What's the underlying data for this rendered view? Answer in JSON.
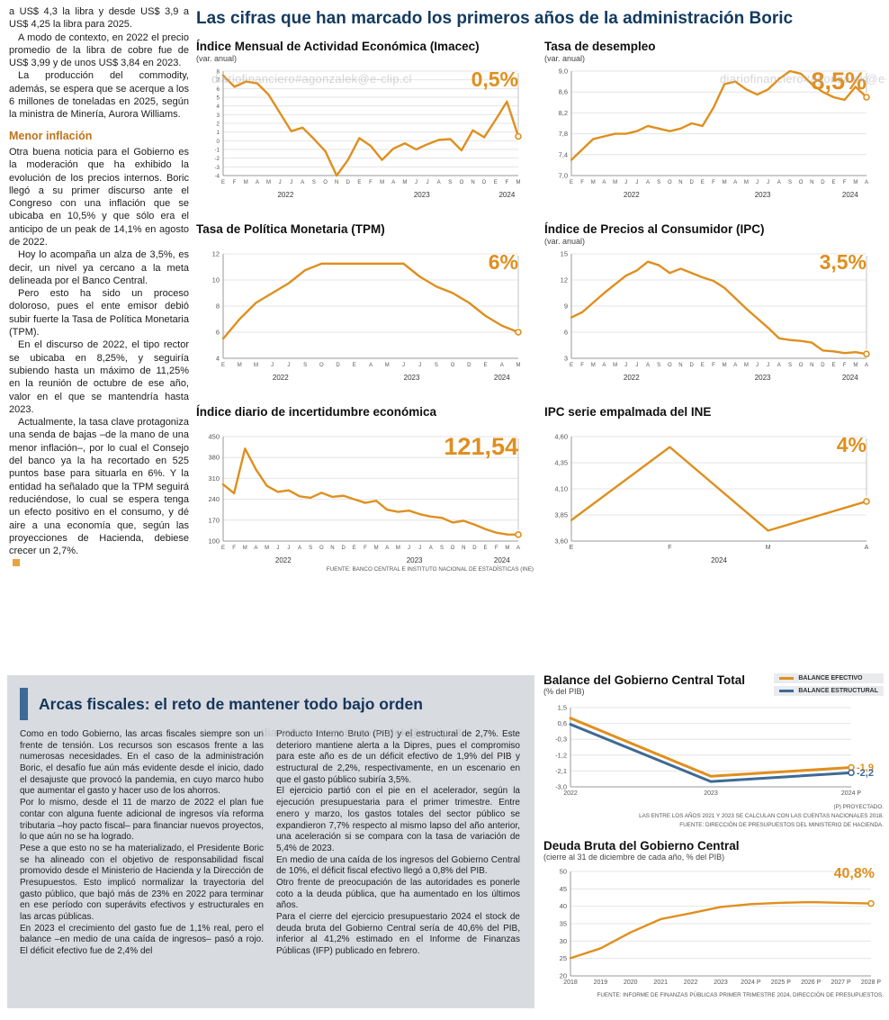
{
  "main_title": "Las cifras que han marcado los primeros años de la administración Boric",
  "watermark": "diariofinanciero#agonzalek@e-clip.cl",
  "colors": {
    "accent_orange": "#DF8F1E",
    "navy": "#143B60",
    "blue": "#3D6A96",
    "box_gray": "#D8DBE0"
  },
  "article_left": {
    "paragraphs": [
      "a US$ 4,3 la libra y desde US$ 3,9 a US$ 4,25 la libra para 2025.",
      "A modo de contexto, en 2022 el precio promedio de la libra de cobre fue de US$ 3,99 y de unos US$ 3,84 en 2023.",
      "La producción del commodity, además, se espera que se acerque a los 6 millones de toneladas en 2025, según la ministra de Minería, Aurora Williams."
    ],
    "heading": "Menor inflación",
    "paragraphs2": [
      "Otra buena noticia para el Gobierno es la moderación que ha exhibido la evolución de los precios internos. Boric llegó a su primer discurso ante el Congreso con una inflación que se ubicaba en 10,5% y que sólo era el anticipo de un peak de 14,1% en agosto de 2022.",
      "Hoy lo acompaña un alza de 3,5%, es decir, un nivel ya cercano a la meta delineada por el Banco Central.",
      "Pero esto ha sido un proceso doloroso, pues el ente emisor debió subir fuerte la Tasa de Política Monetaria (TPM).",
      "En el discurso de 2022, el tipo rector se ubicaba en 8,25%, y seguiría subiendo hasta un máximo de 11,25% en la reunión de octubre de ese año, valor en el que se mantendría hasta 2023.",
      "Actualmente, la tasa clave protagoniza una senda de bajas –de la mano de una menor inflación–, por lo cual el Consejo del banco ya la ha recortado en 525 puntos base para situarla en 6%. Y la entidad ha señalado que la TPM seguirá reduciéndose, lo cual se espera tenga un efecto positivo en el consumo, y dé aire a una economía que, según las proyecciones de Hacienda, debiese crecer un 2,7%."
    ]
  },
  "fiscal_box": {
    "headline": "Arcas fiscales: el reto de mantener todo bajo orden",
    "col1": [
      "Como en todo Gobierno, las arcas fiscales siempre son un frente de tensión. Los recursos son escasos frente a las numerosas necesidades. En el caso de la administración Boric, el desafío fue aún más evidente desde el inicio, dado el desajuste que provocó la pandemia, en cuyo marco hubo que aumentar el gasto y hacer uso de los ahorros.",
      "Por lo mismo, desde el 11 de marzo de 2022 el plan fue contar con alguna fuente adicional de ingresos vía reforma tributaria –hoy pacto fiscal– para financiar nuevos proyectos, lo que aún no se ha logrado.",
      "Pese a que esto no se ha materializado, el Presidente Boric se ha alineado con el objetivo de responsabilidad fiscal promovido desde el Ministerio de Hacienda y la Dirección de Presupuestos. Esto implicó normalizar la trayectoria del gasto público, que bajó más de 23% en 2022 para terminar en ese período con superávits efectivos y estructurales en las arcas públicas.",
      "En 2023 el crecimiento del gasto fue de 1,1% real, pero el balance –en medio de una caída de ingresos– pasó a rojo. El déficit efectivo fue de 2,4% del"
    ],
    "col2": [
      "Producto Interno Bruto (PIB) y el estructural de 2,7%. Este deterioro mantiene alerta a la Dipres, pues el compromiso para este año es de un déficit efectivo de 1,9% del PIB y estructural de 2,2%, respectivamente, en un escenario en que el gasto público subiría 3,5%.",
      "El ejercicio partió con el pie en el acelerador, según la ejecución presupuestaria para el primer trimestre. Entre enero y marzo, los gastos totales del sector público se expandieron 7,7% respecto al mismo lapso del año anterior, una aceleración si se compara con la tasa de variación de 5,4% de 2023.",
      "En medio de una caída de los ingresos del Gobierno Central de 10%, el déficit fiscal efectivo llegó a 0,8% del PIB.",
      "Otro frente de preocupación de las autoridades es ponerle coto a la deuda pública, que ha aumentado en los últimos años.",
      "Para el cierre del ejercicio presupuestario 2024 el stock de deuda bruta del Gobierno Central sería de 40,6% del PIB, inferior al 41,2% estimado en el Informe de Finanzas Públicas (IFP) publicado en febrero."
    ],
    "balance_notes": [
      "(P) PROYECTADO.",
      "LAS ENTRE LOS AÑOS 2021 Y 2023 SE CALCULAN CON LAS CUENTAS NACIONALES 2018.",
      "FUENTE: DIRECCIÓN DE PRESUPUESTOS DEL MINISTERIO DE HACIENDA."
    ],
    "legend": [
      "BALANCE EFECTIVO",
      "BALANCE ESTRUCTURAL"
    ]
  },
  "chart_data": [
    {
      "id": "imacec",
      "type": "line",
      "title": "Índice Mensual de Actividad Económica (Imacec)",
      "subtitle": "(var. anual)",
      "big_label": "0,5%",
      "ylim": [
        -4,
        8
      ],
      "yfs": 6.2,
      "marker_line": true,
      "yticks": [
        {
          "v": 8,
          "l": "8"
        },
        {
          "v": 7,
          "l": "7"
        },
        {
          "v": 6,
          "l": "6"
        },
        {
          "v": 5,
          "l": "5"
        },
        {
          "v": 4,
          "l": "4"
        },
        {
          "v": 3,
          "l": "3"
        },
        {
          "v": 2,
          "l": "2"
        },
        {
          "v": 1,
          "l": "1"
        },
        {
          "v": 0,
          "l": "0"
        },
        {
          "v": -1,
          "l": "-1"
        },
        {
          "v": -2,
          "l": "-2"
        },
        {
          "v": -3,
          "l": "-3"
        },
        {
          "v": -4,
          "l": "-4"
        }
      ],
      "x_labels": [
        "E",
        "F",
        "M",
        "A",
        "M",
        "J",
        "J",
        "A",
        "S",
        "O",
        "N",
        "D",
        "E",
        "F",
        "M",
        "A",
        "M",
        "J",
        "J",
        "A",
        "S",
        "O",
        "N",
        "D",
        "E",
        "F",
        "M"
      ],
      "years": [
        {
          "label": "2022",
          "span": [
            0,
            11
          ]
        },
        {
          "label": "2023",
          "span": [
            12,
            23
          ]
        },
        {
          "label": "2024",
          "span": [
            24,
            26
          ]
        }
      ],
      "series": [
        {
          "name": "Imacec",
          "values": [
            7.5,
            6.2,
            6.8,
            6.6,
            5.3,
            3.2,
            1.1,
            1.5,
            0.2,
            -1.2,
            -4.0,
            -2.2,
            0.3,
            -0.6,
            -2.2,
            -0.9,
            -0.3,
            -1.0,
            -0.4,
            0.1,
            0.2,
            -1.1,
            1.2,
            0.4,
            2.4,
            4.5,
            0.5
          ],
          "end_circle": true
        }
      ]
    },
    {
      "id": "desempleo",
      "type": "line",
      "title": "Tasa de desempleo",
      "subtitle": "(var. anual)",
      "big_label": "8,5%",
      "ylim": [
        7.0,
        9.0
      ],
      "marker_line": true,
      "yticks": [
        {
          "v": 9.0,
          "l": "9,0"
        },
        {
          "v": 8.6,
          "l": "8,6"
        },
        {
          "v": 8.2,
          "l": "8,2"
        },
        {
          "v": 7.8,
          "l": "7,8"
        },
        {
          "v": 7.4,
          "l": "7,4"
        },
        {
          "v": 7.0,
          "l": "7,0"
        }
      ],
      "x_labels": [
        "E",
        "F",
        "M",
        "A",
        "M",
        "J",
        "J",
        "A",
        "S",
        "O",
        "N",
        "D",
        "E",
        "F",
        "M",
        "A",
        "M",
        "J",
        "J",
        "A",
        "S",
        "O",
        "N",
        "D",
        "E",
        "F",
        "M",
        "A"
      ],
      "years": [
        {
          "label": "2022",
          "span": [
            0,
            11
          ]
        },
        {
          "label": "2023",
          "span": [
            12,
            23
          ]
        },
        {
          "label": "2024",
          "span": [
            24,
            27
          ]
        }
      ],
      "series": [
        {
          "name": "Desempleo",
          "values": [
            7.3,
            7.5,
            7.7,
            7.75,
            7.8,
            7.8,
            7.85,
            7.95,
            7.9,
            7.85,
            7.9,
            8.0,
            7.95,
            8.3,
            8.75,
            8.8,
            8.65,
            8.55,
            8.65,
            8.85,
            9.0,
            8.95,
            8.75,
            8.6,
            8.5,
            8.45,
            8.7,
            8.5
          ],
          "end_circle": true
        }
      ]
    },
    {
      "id": "tpm",
      "type": "line",
      "title": "Tasa de Política Monetaria (TPM)",
      "big_label": "6%",
      "ylim": [
        4,
        12
      ],
      "marker_line": true,
      "yticks": [
        {
          "v": 12,
          "l": "12"
        },
        {
          "v": 10,
          "l": "10"
        },
        {
          "v": 8,
          "l": "8"
        },
        {
          "v": 6,
          "l": "6"
        },
        {
          "v": 4,
          "l": "4"
        }
      ],
      "x_labels": [
        "E",
        "M",
        "M",
        "J",
        "J",
        "S",
        "O",
        "D",
        "E",
        "A",
        "M",
        "J",
        "J",
        "S",
        "O",
        "D",
        "E",
        "A",
        "M"
      ],
      "years": [
        {
          "label": "2022",
          "span": [
            0,
            7
          ]
        },
        {
          "label": "2023",
          "span": [
            8,
            15
          ]
        },
        {
          "label": "2024",
          "span": [
            16,
            18
          ]
        }
      ],
      "series": [
        {
          "name": "TPM",
          "values": [
            5.5,
            7.0,
            8.25,
            9.0,
            9.75,
            10.75,
            11.25,
            11.25,
            11.25,
            11.25,
            11.25,
            11.25,
            10.25,
            9.5,
            9.0,
            8.25,
            7.25,
            6.5,
            6.0
          ],
          "end_circle": true
        }
      ]
    },
    {
      "id": "ipc",
      "type": "line",
      "title": "Índice de Precios al Consumidor (IPC)",
      "subtitle": "(var. anual)",
      "big_label": "3,5%",
      "ylim": [
        3,
        15
      ],
      "marker_line": true,
      "yticks": [
        {
          "v": 15,
          "l": "15"
        },
        {
          "v": 12,
          "l": "12"
        },
        {
          "v": 9,
          "l": "9"
        },
        {
          "v": 6,
          "l": "6"
        },
        {
          "v": 3,
          "l": "3"
        }
      ],
      "x_labels": [
        "E",
        "F",
        "M",
        "A",
        "M",
        "J",
        "J",
        "A",
        "S",
        "O",
        "N",
        "D",
        "E",
        "F",
        "M",
        "A",
        "M",
        "J",
        "J",
        "A",
        "S",
        "O",
        "N",
        "D",
        "E",
        "F",
        "M",
        "A"
      ],
      "years": [
        {
          "label": "2022",
          "span": [
            0,
            11
          ]
        },
        {
          "label": "2023",
          "span": [
            12,
            23
          ]
        },
        {
          "label": "2024",
          "span": [
            24,
            27
          ]
        }
      ],
      "series": [
        {
          "name": "IPC",
          "values": [
            7.7,
            8.3,
            9.4,
            10.5,
            11.5,
            12.5,
            13.1,
            14.1,
            13.7,
            12.8,
            13.3,
            12.8,
            12.3,
            11.9,
            11.1,
            9.9,
            8.7,
            7.6,
            6.5,
            5.3,
            5.1,
            5.0,
            4.8,
            3.9,
            3.8,
            3.6,
            3.7,
            3.5
          ],
          "end_circle": true
        }
      ]
    },
    {
      "id": "incertidumbre",
      "type": "line",
      "title": "Índice diario de incertidumbre económica",
      "big_label": "121,54",
      "source": "FUENTE: BANCO CENTRAL E INSTITUTO NACIONAL DE ESTADÍSTICAS (INE)",
      "ylim": [
        100,
        450
      ],
      "marker_line": true,
      "yticks": [
        {
          "v": 450,
          "l": "450"
        },
        {
          "v": 380,
          "l": "380"
        },
        {
          "v": 310,
          "l": "310"
        },
        {
          "v": 240,
          "l": "240"
        },
        {
          "v": 170,
          "l": "170"
        },
        {
          "v": 100,
          "l": "100"
        }
      ],
      "x_labels": [
        "E",
        "F",
        "M",
        "A",
        "M",
        "J",
        "J",
        "A",
        "S",
        "O",
        "N",
        "D",
        "E",
        "F",
        "M",
        "A",
        "M",
        "J",
        "J",
        "A",
        "S",
        "O",
        "N",
        "D",
        "E",
        "F",
        "M",
        "A"
      ],
      "years": [
        {
          "label": "2022",
          "span": [
            0,
            11
          ]
        },
        {
          "label": "2023",
          "span": [
            12,
            23
          ]
        },
        {
          "label": "2024",
          "span": [
            24,
            27
          ]
        }
      ],
      "series": [
        {
          "name": "Incertidumbre",
          "values": [
            290,
            260,
            410,
            340,
            285,
            265,
            270,
            250,
            245,
            262,
            248,
            252,
            240,
            228,
            235,
            205,
            198,
            202,
            190,
            182,
            178,
            162,
            168,
            155,
            140,
            128,
            122,
            121.54
          ],
          "end_circle": true
        }
      ]
    },
    {
      "id": "ipc_ine",
      "type": "line",
      "title": "IPC serie empalmada del INE",
      "big_label": "4%",
      "ylim": [
        3.6,
        4.6
      ],
      "marker_line": true,
      "yticks": [
        {
          "v": 4.6,
          "l": "4,60"
        },
        {
          "v": 4.35,
          "l": "4,35"
        },
        {
          "v": 4.1,
          "l": "4,10"
        },
        {
          "v": 3.85,
          "l": "3,85"
        },
        {
          "v": 3.6,
          "l": "3,60"
        }
      ],
      "x_labels": [
        "E",
        "F",
        "M",
        "A"
      ],
      "years": [
        {
          "label": "2024",
          "span": [
            0,
            3
          ]
        }
      ],
      "series": [
        {
          "name": "IPC INE",
          "values": [
            3.8,
            4.5,
            3.7,
            3.98
          ],
          "end_circle": true
        }
      ]
    },
    {
      "id": "balance",
      "type": "line",
      "title": "Balance del Gobierno Central Total",
      "subtitle": "(% del PIB)",
      "ylim": [
        -3.0,
        1.5
      ],
      "marker_line": false,
      "yticks": [
        {
          "v": 1.5,
          "l": "1,5"
        },
        {
          "v": 0.6,
          "l": "0,6"
        },
        {
          "v": -0.3,
          "l": "-0,3"
        },
        {
          "v": -1.2,
          "l": "-1,2"
        },
        {
          "v": -2.1,
          "l": "-2,1"
        },
        {
          "v": -3.0,
          "l": "-3,0"
        }
      ],
      "x_labels": [
        "2022",
        "2023",
        "2024 P"
      ],
      "series": [
        {
          "name": "Balance efectivo",
          "color": "#DF8F1E",
          "width": 3,
          "values": [
            0.9,
            -2.4,
            -1.9
          ],
          "end_circle": true,
          "end_label": "-1,9"
        },
        {
          "name": "Balance estructural",
          "color": "#3D6A96",
          "width": 3,
          "values": [
            0.55,
            -2.7,
            -2.2
          ],
          "end_circle": true,
          "end_label": "-2,2"
        }
      ]
    },
    {
      "id": "deuda",
      "type": "line",
      "title": "Deuda Bruta del Gobierno Central",
      "subtitle": "(cierre al 31 de diciembre de cada año, % del PIB)",
      "big_label": "40,8%",
      "source": "FUENTE: INFORME DE FINANZAS PÚBLICAS PRIMER TRIMESTRE 2024, DIRECCIÓN DE PRESUPUESTOS.",
      "ylim": [
        20,
        50
      ],
      "marker_line": false,
      "yticks": [
        {
          "v": 50,
          "l": "50"
        },
        {
          "v": 45,
          "l": "45"
        },
        {
          "v": 40,
          "l": "40"
        },
        {
          "v": 35,
          "l": "35"
        },
        {
          "v": 30,
          "l": "30"
        },
        {
          "v": 25,
          "l": "25"
        },
        {
          "v": 20,
          "l": "20"
        }
      ],
      "x_labels": [
        "2018",
        "2019",
        "2020",
        "2021",
        "2022",
        "2023",
        "2024 P",
        "2025 P",
        "2026 P",
        "2027 P",
        "2028 P"
      ],
      "series": [
        {
          "name": "Deuda bruta",
          "values": [
            25.1,
            27.9,
            32.5,
            36.3,
            38.0,
            39.8,
            40.6,
            41.0,
            41.2,
            41.0,
            40.8
          ],
          "end_circle": true
        }
      ]
    }
  ]
}
